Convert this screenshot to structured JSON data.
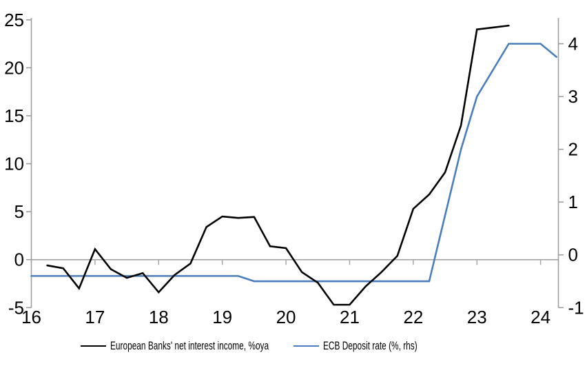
{
  "chart_data": {
    "type": "line",
    "title": "",
    "grid": "zero-line-only",
    "legend_position": "bottom",
    "x_axis": {
      "range": [
        16,
        24.28
      ],
      "ticks": [
        16,
        17,
        18,
        19,
        20,
        21,
        22,
        23,
        24
      ]
    },
    "left_axis": {
      "range": [
        -5,
        25.2
      ],
      "ticks": [
        -5,
        0,
        5,
        10,
        15,
        20,
        25
      ]
    },
    "right_axis": {
      "range": [
        -1,
        4.49
      ],
      "ticks": [
        -1,
        0,
        1,
        2,
        3,
        4
      ]
    },
    "series": [
      {
        "name": "European Banks' net interest income, %oya",
        "axis": "left",
        "color": "#000000",
        "x": [
          16.25,
          16.5,
          16.75,
          17.0,
          17.25,
          17.5,
          17.75,
          18.0,
          18.25,
          18.5,
          18.75,
          19.0,
          19.25,
          19.5,
          19.75,
          20.0,
          20.25,
          20.5,
          20.75,
          21.0,
          21.25,
          21.5,
          21.75,
          22.0,
          22.25,
          22.5,
          22.75,
          23.0,
          23.25,
          23.5
        ],
        "values": [
          -0.6,
          -0.9,
          -3.0,
          1.1,
          -1.0,
          -1.9,
          -1.4,
          -3.4,
          -1.6,
          -0.4,
          3.4,
          4.5,
          4.35,
          4.45,
          1.4,
          1.2,
          -1.3,
          -2.4,
          -4.7,
          -4.7,
          -2.8,
          -1.3,
          0.4,
          5.3,
          6.8,
          9.1,
          14.0,
          24.0,
          24.2,
          24.4
        ]
      },
      {
        "name": "ECB Deposit rate (%, rhs)",
        "axis": "right",
        "color": "#4a7ebb",
        "x": [
          16.0,
          16.25,
          16.5,
          16.75,
          17.0,
          17.25,
          17.5,
          17.75,
          18.0,
          18.25,
          18.5,
          18.75,
          19.0,
          19.25,
          19.5,
          19.75,
          20.0,
          20.25,
          20.5,
          20.75,
          21.0,
          21.25,
          21.5,
          21.75,
          22.0,
          22.25,
          22.5,
          22.75,
          23.0,
          23.25,
          23.5,
          23.75,
          24.0,
          24.25
        ],
        "values": [
          -0.4,
          -0.4,
          -0.4,
          -0.4,
          -0.4,
          -0.4,
          -0.4,
          -0.4,
          -0.4,
          -0.4,
          -0.4,
          -0.4,
          -0.4,
          -0.4,
          -0.5,
          -0.5,
          -0.5,
          -0.5,
          -0.5,
          -0.5,
          -0.5,
          -0.5,
          -0.5,
          -0.5,
          -0.5,
          -0.5,
          0.75,
          2.0,
          3.0,
          3.5,
          4.0,
          4.0,
          4.0,
          3.75
        ]
      }
    ]
  },
  "colors": {
    "axis_line": "#9d9d9d",
    "zero_line": "#a6a6a6",
    "text": "#000000",
    "nii_line": "#000000",
    "ecb_line": "#4a7ebb",
    "background": "#ffffff"
  }
}
